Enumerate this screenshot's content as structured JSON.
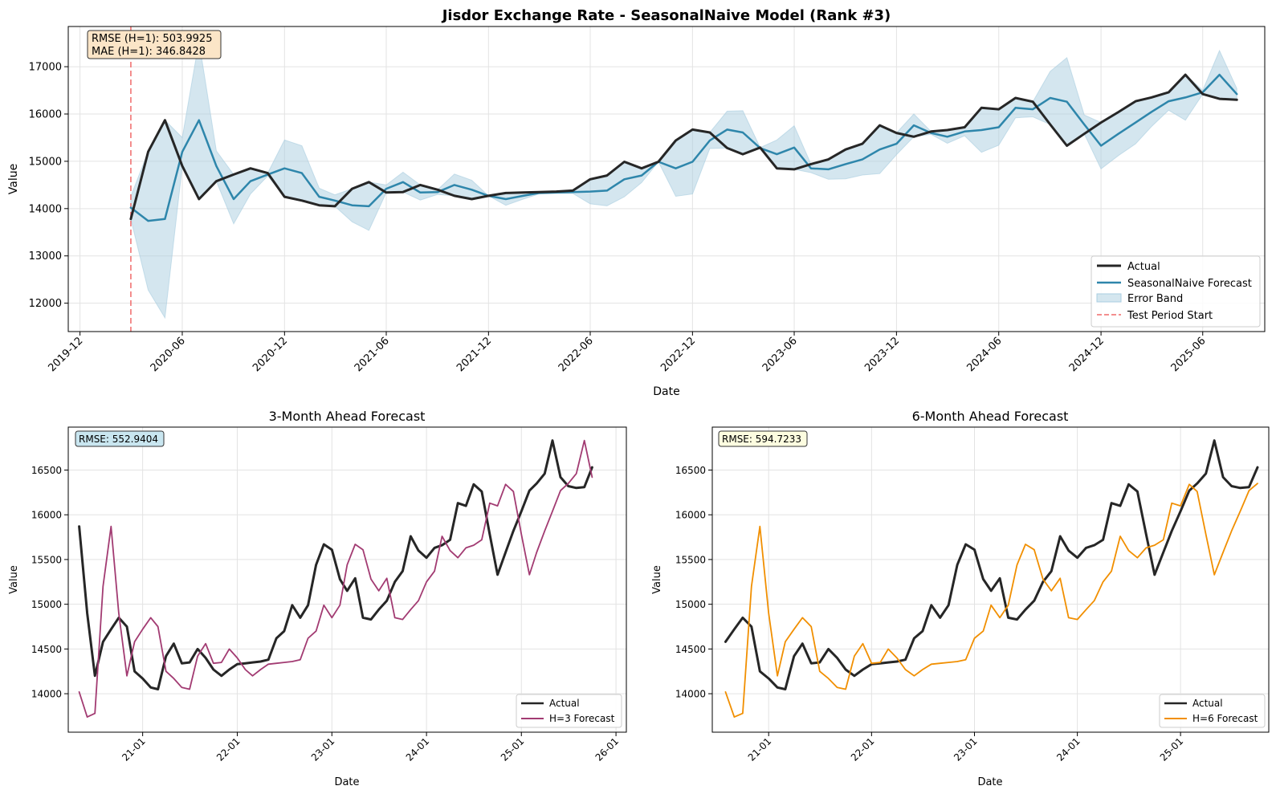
{
  "colors": {
    "actual": "#262626",
    "forecast": "#2e86ab",
    "band": "#a9cde0",
    "test_start": "#f06a6a",
    "h3": "#a23b72",
    "h6": "#f18f01",
    "stat_box_main": "#fbe5c7",
    "stat_box_h3": "#c9e6f0",
    "stat_box_h6": "#fdfde0",
    "grid": "#e3e3e3"
  },
  "chart_data": [
    {
      "type": "line",
      "title": "Jisdor Exchange Rate - SeasonalNaive Model (Rank #3)",
      "xlabel": "Date",
      "ylabel": "Value",
      "x_range": [
        "2019-11-10",
        "2025-09-20"
      ],
      "ylim": [
        11400,
        17850
      ],
      "x_ticks": [
        "2019-12",
        "2020-06",
        "2020-12",
        "2021-06",
        "2021-12",
        "2022-06",
        "2022-12",
        "2023-06",
        "2023-12",
        "2024-06",
        "2024-12",
        "2025-06"
      ],
      "y_ticks": [
        12000,
        13000,
        14000,
        15000,
        16000,
        17000
      ],
      "grid": true,
      "legend_position": "lower-right",
      "stats": [
        "RMSE (H=1): 503.9925",
        "MAE (H=1): 346.8428"
      ],
      "test_period_start": "2020-03",
      "x": [
        "2020-03",
        "2020-04",
        "2020-05",
        "2020-06",
        "2020-07",
        "2020-08",
        "2020-09",
        "2020-10",
        "2020-11",
        "2020-12",
        "2021-01",
        "2021-02",
        "2021-03",
        "2021-04",
        "2021-05",
        "2021-06",
        "2021-07",
        "2021-08",
        "2021-09",
        "2021-10",
        "2021-11",
        "2021-12",
        "2022-01",
        "2022-02",
        "2022-03",
        "2022-04",
        "2022-05",
        "2022-06",
        "2022-07",
        "2022-08",
        "2022-09",
        "2022-10",
        "2022-11",
        "2022-12",
        "2023-01",
        "2023-02",
        "2023-03",
        "2023-04",
        "2023-05",
        "2023-06",
        "2023-07",
        "2023-08",
        "2023-09",
        "2023-10",
        "2023-11",
        "2023-12",
        "2024-01",
        "2024-02",
        "2024-03",
        "2024-04",
        "2024-05",
        "2024-06",
        "2024-07",
        "2024-08",
        "2024-09",
        "2024-10",
        "2024-11",
        "2024-12",
        "2025-01",
        "2025-02",
        "2025-03",
        "2025-04",
        "2025-05",
        "2025-06",
        "2025-07",
        "2025-08"
      ],
      "series": [
        {
          "name": "Actual",
          "role": "actual",
          "values": [
            13780,
            15200,
            15870,
            14900,
            14200,
            14580,
            14720,
            14850,
            14750,
            14250,
            14170,
            14070,
            14050,
            14420,
            14560,
            14340,
            14350,
            14500,
            14400,
            14270,
            14200,
            14270,
            14330,
            14340,
            14350,
            14360,
            14380,
            14620,
            14700,
            14990,
            14850,
            14990,
            15440,
            15670,
            15610,
            15280,
            15150,
            15290,
            14850,
            14830,
            14940,
            15040,
            15250,
            15370,
            15760,
            15600,
            15520,
            15630,
            15660,
            15720,
            16130,
            16100,
            16340,
            16260,
            15780,
            15330,
            15580,
            15820,
            16040,
            16270,
            16350,
            16460,
            16830,
            16420,
            16320,
            16300
          ]
        },
        {
          "name": "SeasonalNaive Forecast",
          "role": "forecast",
          "values": [
            14020,
            13740,
            13780,
            15200,
            15870,
            14900,
            14200,
            14580,
            14720,
            14850,
            14750,
            14250,
            14170,
            14070,
            14050,
            14420,
            14560,
            14340,
            14350,
            14500,
            14400,
            14270,
            14200,
            14270,
            14330,
            14340,
            14350,
            14360,
            14380,
            14620,
            14700,
            14990,
            14850,
            14990,
            15440,
            15670,
            15610,
            15280,
            15150,
            15290,
            14850,
            14830,
            14940,
            15040,
            15250,
            15370,
            15760,
            15600,
            15520,
            15630,
            15660,
            15720,
            16130,
            16100,
            16340,
            16260,
            15780,
            15330,
            15580,
            15820,
            16040,
            16270,
            16350,
            16460,
            16830,
            16420
          ]
        },
        {
          "name": "Error Band",
          "role": "band"
        },
        {
          "name": "Test Period Start",
          "role": "vline"
        }
      ]
    },
    {
      "type": "line",
      "title": "3-Month Ahead Forecast",
      "xlabel": "Date",
      "ylabel": "Value",
      "x_range": [
        "2020-03-20",
        "2026-02-10"
      ],
      "ylim": [
        13570,
        16980
      ],
      "x_ticks": [
        "21-01",
        "22-01",
        "23-01",
        "24-01",
        "25-01",
        "26-01"
      ],
      "y_ticks": [
        14000,
        14500,
        15000,
        15500,
        16000,
        16500
      ],
      "grid": true,
      "legend_position": "lower-right",
      "stats": [
        "RMSE: 552.9404"
      ],
      "x": [
        "2020-05",
        "2020-06",
        "2020-07",
        "2020-08",
        "2020-09",
        "2020-10",
        "2020-11",
        "2020-12",
        "2021-01",
        "2021-02",
        "2021-03",
        "2021-04",
        "2021-05",
        "2021-06",
        "2021-07",
        "2021-08",
        "2021-09",
        "2021-10",
        "2021-11",
        "2021-12",
        "2022-01",
        "2022-02",
        "2022-03",
        "2022-04",
        "2022-05",
        "2022-06",
        "2022-07",
        "2022-08",
        "2022-09",
        "2022-10",
        "2022-11",
        "2022-12",
        "2023-01",
        "2023-02",
        "2023-03",
        "2023-04",
        "2023-05",
        "2023-06",
        "2023-07",
        "2023-08",
        "2023-09",
        "2023-10",
        "2023-11",
        "2023-12",
        "2024-01",
        "2024-02",
        "2024-03",
        "2024-04",
        "2024-05",
        "2024-06",
        "2024-07",
        "2024-08",
        "2024-09",
        "2024-10",
        "2024-11",
        "2024-12",
        "2025-01",
        "2025-02",
        "2025-03",
        "2025-04",
        "2025-05",
        "2025-06",
        "2025-07",
        "2025-08",
        "2025-09",
        "2025-10"
      ],
      "series": [
        {
          "name": "Actual",
          "role": "actual",
          "values": [
            15870,
            14900,
            14200,
            14580,
            14720,
            14850,
            14750,
            14250,
            14170,
            14070,
            14050,
            14420,
            14560,
            14340,
            14350,
            14500,
            14400,
            14270,
            14200,
            14270,
            14330,
            14340,
            14350,
            14360,
            14380,
            14620,
            14700,
            14990,
            14850,
            14990,
            15440,
            15670,
            15610,
            15280,
            15150,
            15290,
            14850,
            14830,
            14940,
            15040,
            15250,
            15370,
            15760,
            15600,
            15520,
            15630,
            15660,
            15720,
            16130,
            16100,
            16340,
            16260,
            15780,
            15330,
            15580,
            15820,
            16040,
            16270,
            16350,
            16460,
            16830,
            16420,
            16320,
            16300,
            16310,
            16530
          ]
        },
        {
          "name": "H=3 Forecast",
          "role": "h3",
          "values": [
            14020,
            13740,
            13780,
            15200,
            15870,
            14900,
            14200,
            14580,
            14720,
            14850,
            14750,
            14250,
            14170,
            14070,
            14050,
            14420,
            14560,
            14340,
            14350,
            14500,
            14400,
            14270,
            14200,
            14270,
            14330,
            14340,
            14350,
            14360,
            14380,
            14620,
            14700,
            14990,
            14850,
            14990,
            15440,
            15670,
            15610,
            15280,
            15150,
            15290,
            14850,
            14830,
            14940,
            15040,
            15250,
            15370,
            15760,
            15600,
            15520,
            15630,
            15660,
            15720,
            16130,
            16100,
            16340,
            16260,
            15780,
            15330,
            15580,
            15820,
            16040,
            16270,
            16350,
            16460,
            16830,
            16420
          ]
        }
      ]
    },
    {
      "type": "line",
      "title": "6-Month Ahead Forecast",
      "xlabel": "Date",
      "ylabel": "Value",
      "x_range": [
        "2020-06-15",
        "2025-11-10"
      ],
      "ylim": [
        13570,
        16980
      ],
      "x_ticks": [
        "21-01",
        "22-01",
        "23-01",
        "24-01",
        "25-01"
      ],
      "y_ticks": [
        14000,
        14500,
        15000,
        15500,
        16000,
        16500
      ],
      "grid": true,
      "legend_position": "lower-right",
      "stats": [
        "RMSE: 594.7233"
      ],
      "x": [
        "2020-08",
        "2020-09",
        "2020-10",
        "2020-11",
        "2020-12",
        "2021-01",
        "2021-02",
        "2021-03",
        "2021-04",
        "2021-05",
        "2021-06",
        "2021-07",
        "2021-08",
        "2021-09",
        "2021-10",
        "2021-11",
        "2021-12",
        "2022-01",
        "2022-02",
        "2022-03",
        "2022-04",
        "2022-05",
        "2022-06",
        "2022-07",
        "2022-08",
        "2022-09",
        "2022-10",
        "2022-11",
        "2022-12",
        "2023-01",
        "2023-02",
        "2023-03",
        "2023-04",
        "2023-05",
        "2023-06",
        "2023-07",
        "2023-08",
        "2023-09",
        "2023-10",
        "2023-11",
        "2023-12",
        "2024-01",
        "2024-02",
        "2024-03",
        "2024-04",
        "2024-05",
        "2024-06",
        "2024-07",
        "2024-08",
        "2024-09",
        "2024-10",
        "2024-11",
        "2024-12",
        "2025-01",
        "2025-02",
        "2025-03",
        "2025-04",
        "2025-05",
        "2025-06",
        "2025-07",
        "2025-08",
        "2025-09",
        "2025-10"
      ],
      "series": [
        {
          "name": "Actual",
          "role": "actual",
          "values": [
            14580,
            14720,
            14850,
            14750,
            14250,
            14170,
            14070,
            14050,
            14420,
            14560,
            14340,
            14350,
            14500,
            14400,
            14270,
            14200,
            14270,
            14330,
            14340,
            14350,
            14360,
            14380,
            14620,
            14700,
            14990,
            14850,
            14990,
            15440,
            15670,
            15610,
            15280,
            15150,
            15290,
            14850,
            14830,
            14940,
            15040,
            15250,
            15370,
            15760,
            15600,
            15520,
            15630,
            15660,
            15720,
            16130,
            16100,
            16340,
            16260,
            15780,
            15330,
            15580,
            15820,
            16040,
            16270,
            16350,
            16460,
            16830,
            16420,
            16320,
            16300,
            16310,
            16530
          ]
        },
        {
          "name": "H=6 Forecast",
          "role": "h6",
          "values": [
            14020,
            13740,
            13780,
            15200,
            15870,
            14900,
            14200,
            14580,
            14720,
            14850,
            14750,
            14250,
            14170,
            14070,
            14050,
            14420,
            14560,
            14340,
            14350,
            14500,
            14400,
            14270,
            14200,
            14270,
            14330,
            14340,
            14350,
            14360,
            14380,
            14620,
            14700,
            14990,
            14850,
            14990,
            15440,
            15670,
            15610,
            15280,
            15150,
            15290,
            14850,
            14830,
            14940,
            15040,
            15250,
            15370,
            15760,
            15600,
            15520,
            15630,
            15660,
            15720,
            16130,
            16100,
            16340,
            16260,
            15780,
            15330,
            15580,
            15820,
            16040,
            16270,
            16350
          ]
        }
      ]
    }
  ]
}
